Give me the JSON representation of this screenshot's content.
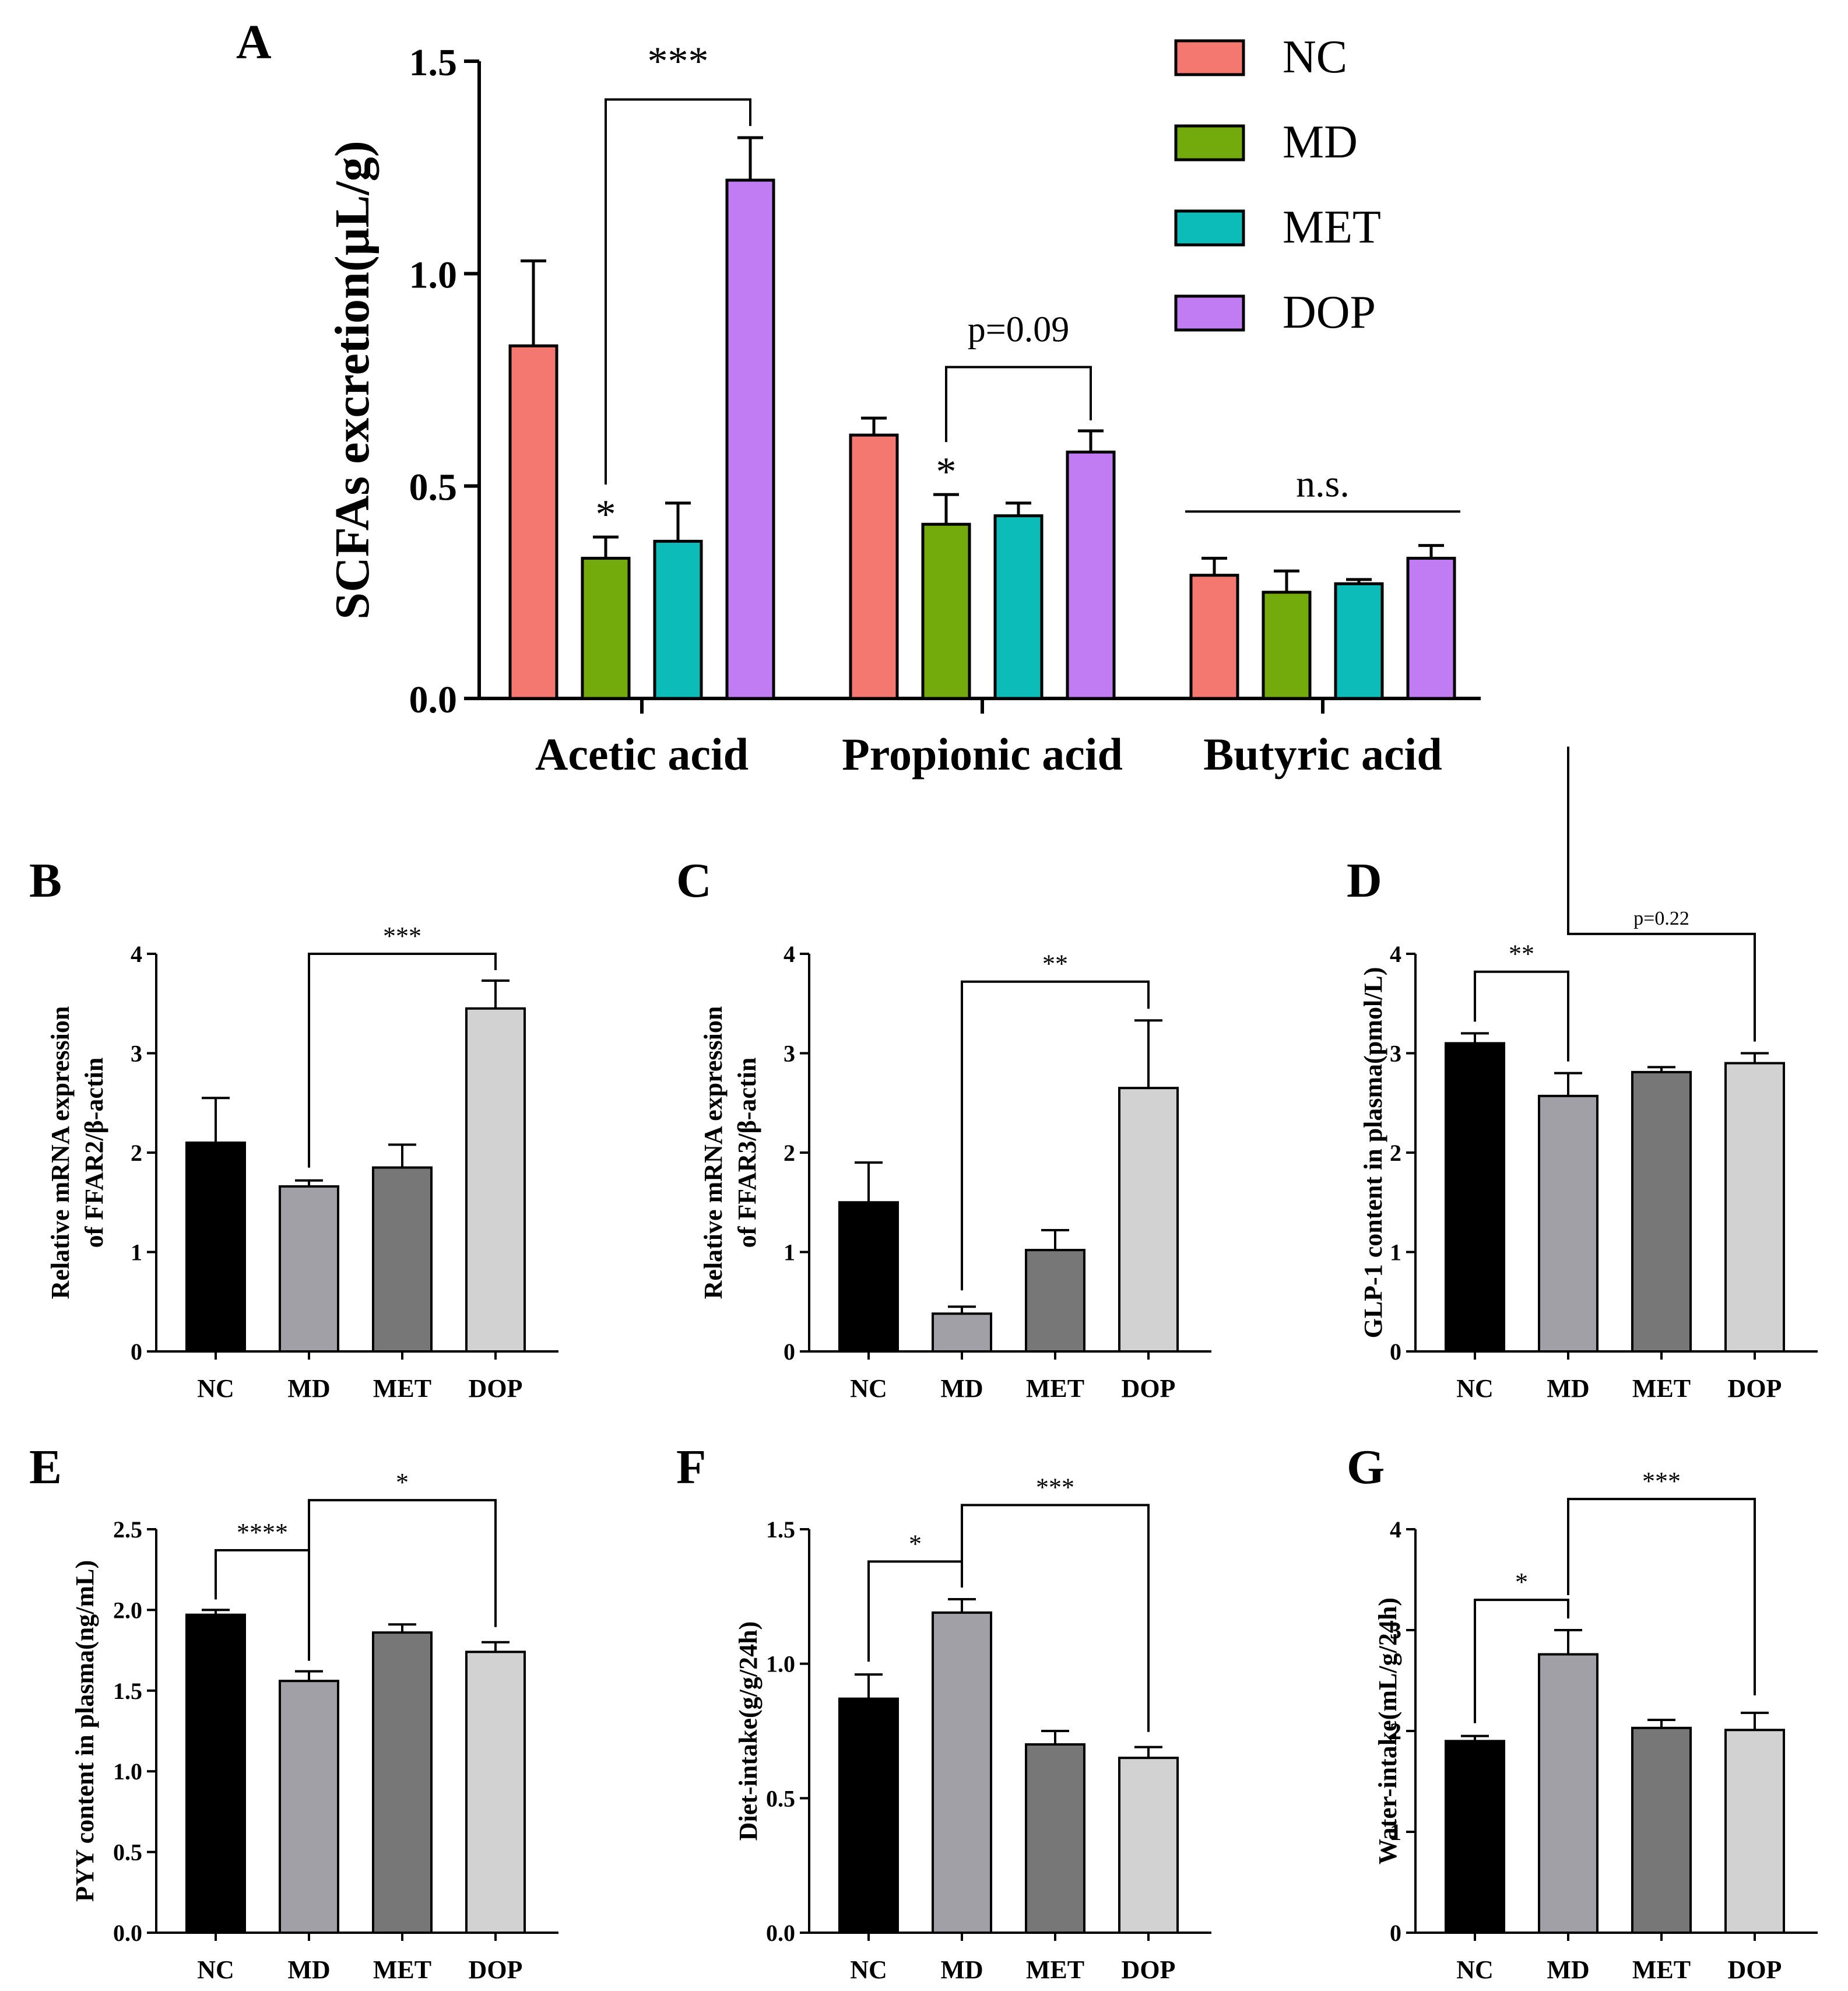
{
  "colors": {
    "NC_A": "#f47770",
    "MD_A": "#73ab0c",
    "MET_A": "#0bbcb8",
    "DOP_A": "#c27cf3",
    "NC": "#000000",
    "MD": "#a0a0a6",
    "MET": "#777777",
    "DOP": "#d2d2d2"
  },
  "chart_data": [
    {
      "panel": "A",
      "type": "bar",
      "ylabel": "SCFAs excretion(μL/g)",
      "ylim": [
        0,
        1.5
      ],
      "yticks": [
        "0.0",
        "0.5",
        "1.0",
        "1.5"
      ],
      "categories": [
        "Acetic acid",
        "Propionic acid",
        "Butyric acid"
      ],
      "series": [
        {
          "name": "NC",
          "values": [
            0.83,
            0.62,
            0.29
          ],
          "errors": [
            0.2,
            0.04,
            0.04
          ]
        },
        {
          "name": "MD",
          "values": [
            0.33,
            0.41,
            0.25
          ],
          "errors": [
            0.05,
            0.07,
            0.05
          ]
        },
        {
          "name": "MET",
          "values": [
            0.37,
            0.43,
            0.27
          ],
          "errors": [
            0.09,
            0.03,
            0.01
          ]
        },
        {
          "name": "DOP",
          "values": [
            1.22,
            0.58,
            0.33
          ],
          "errors": [
            0.1,
            0.05,
            0.03
          ]
        }
      ],
      "legend_position": "top-right",
      "annotations": [
        "*",
        "***",
        "*",
        "p=0.09",
        "n.s."
      ]
    },
    {
      "panel": "B",
      "type": "bar",
      "ylabel": [
        "Relative  mRNA expression",
        "of FFAR2/β-actin"
      ],
      "ylim": [
        0,
        4
      ],
      "yticks": [
        "0",
        "1",
        "2",
        "3",
        "4"
      ],
      "categories": [
        "NC",
        "MD",
        "MET",
        "DOP"
      ],
      "values": [
        2.1,
        1.66,
        1.85,
        3.45
      ],
      "errors": [
        0.45,
        0.06,
        0.23,
        0.28
      ],
      "annotations": [
        "***"
      ]
    },
    {
      "panel": "C",
      "type": "bar",
      "ylabel": [
        "Relative  mRNA expression",
        "of FFAR3/β-actin"
      ],
      "ylim": [
        0,
        4
      ],
      "yticks": [
        "0",
        "1",
        "2",
        "3",
        "4"
      ],
      "categories": [
        "NC",
        "MD",
        "MET",
        "DOP"
      ],
      "values": [
        1.5,
        0.38,
        1.02,
        2.65
      ],
      "errors": [
        0.4,
        0.07,
        0.2,
        0.68
      ],
      "annotations": [
        "**"
      ]
    },
    {
      "panel": "D",
      "type": "bar",
      "ylabel": "GLP-1 content in plasma(pmol/L)",
      "ylim": [
        0,
        4
      ],
      "yticks": [
        "0",
        "1",
        "2",
        "3",
        "4"
      ],
      "categories": [
        "NC",
        "MD",
        "MET",
        "DOP"
      ],
      "values": [
        3.1,
        2.57,
        2.81,
        2.9
      ],
      "errors": [
        0.1,
        0.23,
        0.05,
        0.1
      ],
      "annotations": [
        "**",
        "p=0.22"
      ]
    },
    {
      "panel": "E",
      "type": "bar",
      "ylabel": "PYY content in plasma(ng/mL)",
      "ylim": [
        0,
        2.5
      ],
      "yticks": [
        "0.0",
        "0.5",
        "1.0",
        "1.5",
        "2.0",
        "2.5"
      ],
      "categories": [
        "NC",
        "MD",
        "MET",
        "DOP"
      ],
      "values": [
        1.97,
        1.56,
        1.86,
        1.74
      ],
      "errors": [
        0.03,
        0.06,
        0.05,
        0.06
      ],
      "annotations": [
        "****",
        "*"
      ]
    },
    {
      "panel": "F",
      "type": "bar",
      "ylabel": "Diet-intake(g/g/24h)",
      "ylim": [
        0,
        1.5
      ],
      "yticks": [
        "0.0",
        "0.5",
        "1.0",
        "1.5"
      ],
      "categories": [
        "NC",
        "MD",
        "MET",
        "DOP"
      ],
      "values": [
        0.87,
        1.19,
        0.7,
        0.65
      ],
      "errors": [
        0.09,
        0.05,
        0.05,
        0.04
      ],
      "annotations": [
        "*",
        "***"
      ]
    },
    {
      "panel": "G",
      "type": "bar",
      "ylabel": "Water-intake(mL/g/24h)",
      "ylim": [
        0,
        4
      ],
      "yticks": [
        "0",
        "1",
        "2",
        "3",
        "4"
      ],
      "categories": [
        "NC",
        "MD",
        "MET",
        "DOP"
      ],
      "values": [
        1.9,
        2.76,
        2.03,
        2.01
      ],
      "errors": [
        0.05,
        0.24,
        0.08,
        0.17
      ],
      "annotations": [
        "*",
        "***"
      ]
    }
  ]
}
